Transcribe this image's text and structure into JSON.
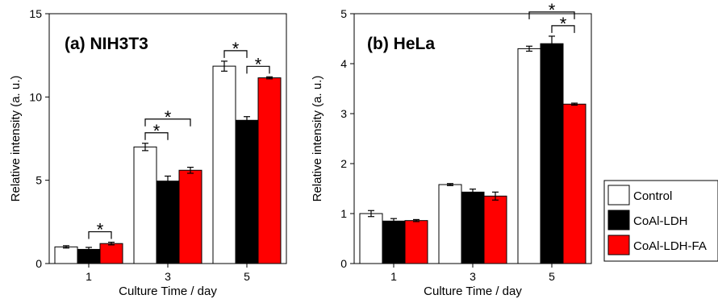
{
  "legend": {
    "entries": [
      {
        "label": "Control",
        "color": "#ffffff"
      },
      {
        "label": "CoAl-LDH",
        "color": "#000000"
      },
      {
        "label": "CoAl-LDH-FA",
        "color": "#ff0000"
      }
    ]
  },
  "chart_data": [
    {
      "type": "bar",
      "title": "(a) NIH3T3",
      "xlabel": "Culture Time / day",
      "ylabel": "Relative intensity (a. u.)",
      "categories": [
        "1",
        "3",
        "5"
      ],
      "ylim": [
        0,
        15
      ],
      "yticks": [
        0,
        5,
        10,
        15
      ],
      "series": [
        {
          "name": "Control",
          "color": "#ffffff",
          "values": [
            1.0,
            7.0,
            11.85
          ],
          "errors": [
            0.07,
            0.22,
            0.3
          ]
        },
        {
          "name": "CoAl-LDH",
          "color": "#000000",
          "values": [
            0.85,
            4.95,
            8.6
          ],
          "errors": [
            0.12,
            0.3,
            0.22
          ]
        },
        {
          "name": "CoAl-LDH-FA",
          "color": "#ff0000",
          "values": [
            1.2,
            5.6,
            11.15
          ],
          "errors": [
            0.08,
            0.18,
            0.06
          ]
        }
      ],
      "annotations": [
        {
          "text": "*",
          "from": [
            0,
            1
          ],
          "to": [
            0,
            2
          ]
        },
        {
          "text": "*",
          "from": [
            1,
            0
          ],
          "to": [
            1,
            1
          ]
        },
        {
          "text": "*",
          "from": [
            1,
            0
          ],
          "to": [
            1,
            2
          ]
        },
        {
          "text": "*",
          "from": [
            2,
            0
          ],
          "to": [
            2,
            1
          ]
        },
        {
          "text": "*",
          "from": [
            2,
            1
          ],
          "to": [
            2,
            2
          ]
        }
      ]
    },
    {
      "type": "bar",
      "title": "(b) HeLa",
      "xlabel": "Culture Time / day",
      "ylabel": "Relative intensity (a. u.)",
      "categories": [
        "1",
        "3",
        "5"
      ],
      "ylim": [
        0,
        5
      ],
      "yticks": [
        0,
        1,
        2,
        3,
        4,
        5
      ],
      "series": [
        {
          "name": "Control",
          "color": "#ffffff",
          "values": [
            1.0,
            1.58,
            4.3
          ],
          "errors": [
            0.06,
            0.02,
            0.05
          ]
        },
        {
          "name": "CoAl-LDH",
          "color": "#000000",
          "values": [
            0.85,
            1.43,
            4.4
          ],
          "errors": [
            0.05,
            0.06,
            0.15
          ]
        },
        {
          "name": "CoAl-LDH-FA",
          "color": "#ff0000",
          "values": [
            0.86,
            1.35,
            3.19
          ],
          "errors": [
            0.02,
            0.08,
            0.02
          ]
        }
      ],
      "annotations": [
        {
          "text": "*",
          "from": [
            2,
            0
          ],
          "to": [
            2,
            2
          ]
        },
        {
          "text": "*",
          "from": [
            2,
            1
          ],
          "to": [
            2,
            2
          ]
        }
      ]
    }
  ]
}
